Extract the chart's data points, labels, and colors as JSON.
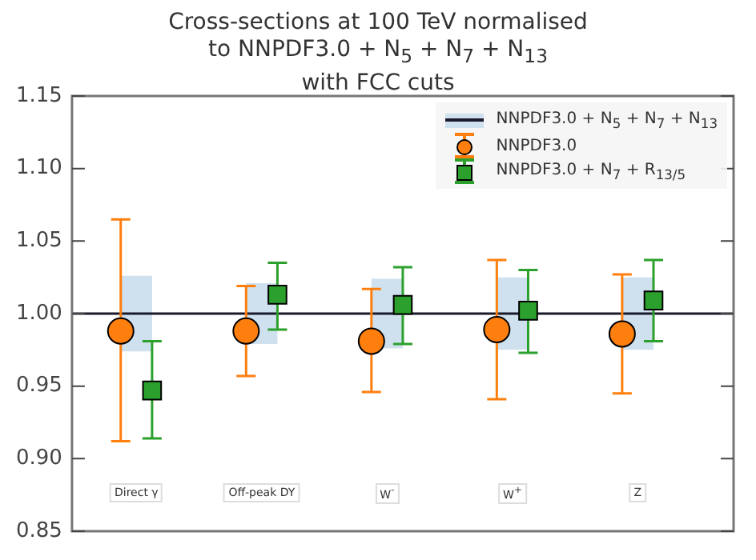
{
  "chart_data": {
    "type": "scatter",
    "title": "Cross-sections at 100 TeV normalised\nto NNPDF3.0 + N$_{5}$ + N$_{7}$ + N$_{13}$\nwith FCC cuts",
    "categories": [
      "Direct γ",
      "Off-peak DY",
      "W$^{-}$",
      "W$^{+}$",
      "Z"
    ],
    "series": [
      {
        "name": "NNPDF3.0 + N$_{5}$ + N$_{7}$ + N$_{13}$",
        "type": "bar",
        "color": "#cfe0ee",
        "base": [
          0.974,
          0.979,
          0.976,
          0.975,
          0.975
        ],
        "values": [
          0.052,
          0.042,
          0.048,
          0.05,
          0.05
        ]
      },
      {
        "name": "NNPDF3.0",
        "marker": "circle",
        "color": "#ff7f0e",
        "values": [
          0.988,
          0.988,
          0.981,
          0.989,
          0.986
        ],
        "errors": [
          [
            0.912,
            1.065
          ],
          [
            0.957,
            1.019
          ],
          [
            0.946,
            1.017
          ],
          [
            0.941,
            1.037
          ],
          [
            0.945,
            1.027
          ]
        ]
      },
      {
        "name": "NNPDF3.0 + N$_{7}$ + R$_{13/5}$",
        "marker": "square",
        "color": "#2ca02c",
        "values": [
          0.947,
          1.013,
          1.006,
          1.002,
          1.009
        ],
        "errors": [
          [
            0.914,
            0.981
          ],
          [
            0.989,
            1.035
          ],
          [
            0.979,
            1.032
          ],
          [
            0.973,
            1.03
          ],
          [
            0.981,
            1.037
          ]
        ]
      }
    ],
    "ref_lines": [
      {
        "axis": "y",
        "value": 1.0,
        "color": "#1a1a2a"
      }
    ],
    "ylim": [
      0.85,
      1.15
    ],
    "yticks": [
      {
        "value": 0.85,
        "label": "0.85"
      },
      {
        "value": 0.9,
        "label": "0.90"
      },
      {
        "value": 0.95,
        "label": "0.95"
      },
      {
        "value": 1.0,
        "label": "1.00"
      },
      {
        "value": 1.05,
        "label": "1.05"
      },
      {
        "value": 1.1,
        "label": "1.10"
      },
      {
        "value": 1.15,
        "label": "1.15"
      }
    ],
    "grid": false,
    "legend": "top right"
  }
}
